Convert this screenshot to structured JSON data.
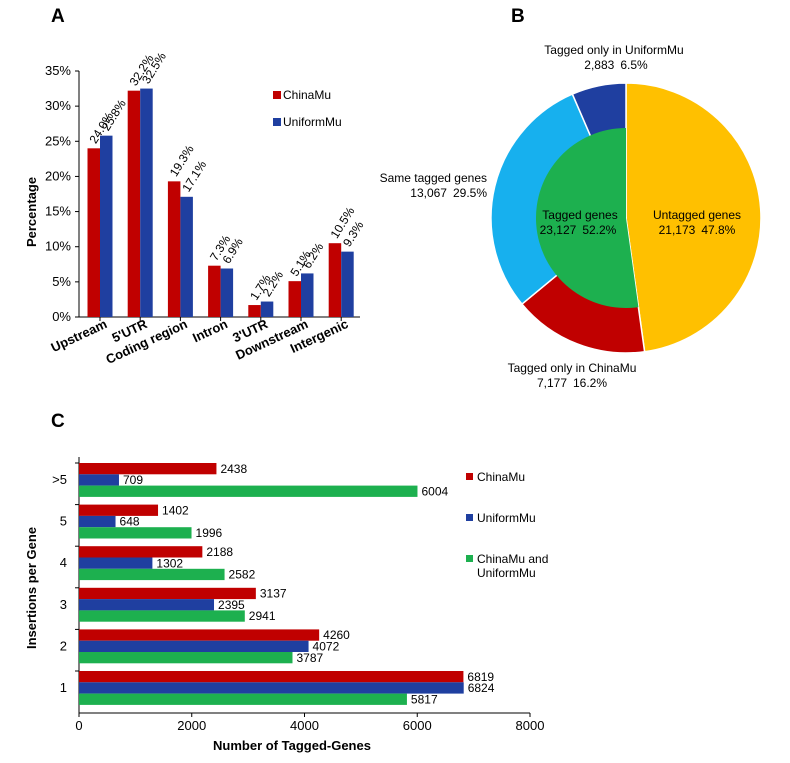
{
  "colors": {
    "chinamu": "#c00000",
    "uniformmu": "#1f3fa0",
    "both": "#1db04f",
    "untagged": "#ffc000",
    "same": "#17b0ee",
    "axis": "#000000"
  },
  "panels": {
    "a": "A",
    "b": "B",
    "c": "C"
  },
  "chart_data": [
    {
      "type": "bar",
      "panel": "A",
      "ylabel": "Percentage",
      "ylim": [
        0,
        35
      ],
      "yticks": [
        "0%",
        "5%",
        "10%",
        "15%",
        "20%",
        "25%",
        "30%",
        "35%"
      ],
      "categories": [
        "Upstream",
        "5'UTR",
        "Coding region",
        "Intron",
        "3'UTR",
        "Downstream",
        "Intergenic"
      ],
      "legend_position": "right",
      "series": [
        {
          "name": "ChinaMu",
          "values": [
            24.0,
            32.2,
            19.3,
            7.3,
            1.7,
            5.1,
            10.5
          ],
          "labels": [
            "24.0%",
            "32.2%",
            "19.3%",
            "7.3%",
            "1.7%",
            "5.1%",
            "10.5%"
          ]
        },
        {
          "name": "UniformMu",
          "values": [
            25.8,
            32.5,
            17.1,
            6.9,
            2.2,
            6.2,
            9.3
          ],
          "labels": [
            "25.8%",
            "32.5%",
            "17.1%",
            "6.9%",
            "2.2%",
            "6.2%",
            "9.3%"
          ]
        }
      ]
    },
    {
      "type": "pie",
      "panel": "B",
      "outer": [
        {
          "label": "Untagged genes",
          "count": "21,173",
          "percent": "47.8%",
          "value": 47.8
        },
        {
          "label": "Tagged only in ChinaMu",
          "count": "7,177",
          "percent": "16.2%",
          "value": 16.2
        },
        {
          "label": "Same tagged genes",
          "count": "13,067",
          "percent": "29.5%",
          "value": 29.5
        },
        {
          "label": "Tagged only in UniformMu",
          "count": "2,883",
          "percent": "6.5%",
          "value": 6.5
        }
      ],
      "inner": {
        "label": "Tagged genes",
        "count": "23,127",
        "percent": "52.2%",
        "value": 52.2
      }
    },
    {
      "type": "bar",
      "orientation": "horizontal",
      "panel": "C",
      "xlabel": "Number of Tagged-Genes",
      "ylabel": "Insertions per Gene",
      "xlim": [
        0,
        8000
      ],
      "xticks": [
        "0",
        "2000",
        "4000",
        "6000",
        "8000"
      ],
      "categories": [
        ">5",
        "5",
        "4",
        "3",
        "2",
        "1"
      ],
      "legend_position": "right",
      "series": [
        {
          "name": "ChinaMu",
          "values": [
            2438,
            1402,
            2188,
            3137,
            4260,
            6819
          ]
        },
        {
          "name": "UniformMu",
          "values": [
            709,
            648,
            1302,
            2395,
            4072,
            6824
          ]
        },
        {
          "name": "ChinaMu and UniformMu",
          "name_lines": [
            "ChinaMu and",
            "UniformMu"
          ],
          "values": [
            6004,
            1996,
            2582,
            2941,
            3787,
            5817
          ]
        }
      ]
    }
  ]
}
